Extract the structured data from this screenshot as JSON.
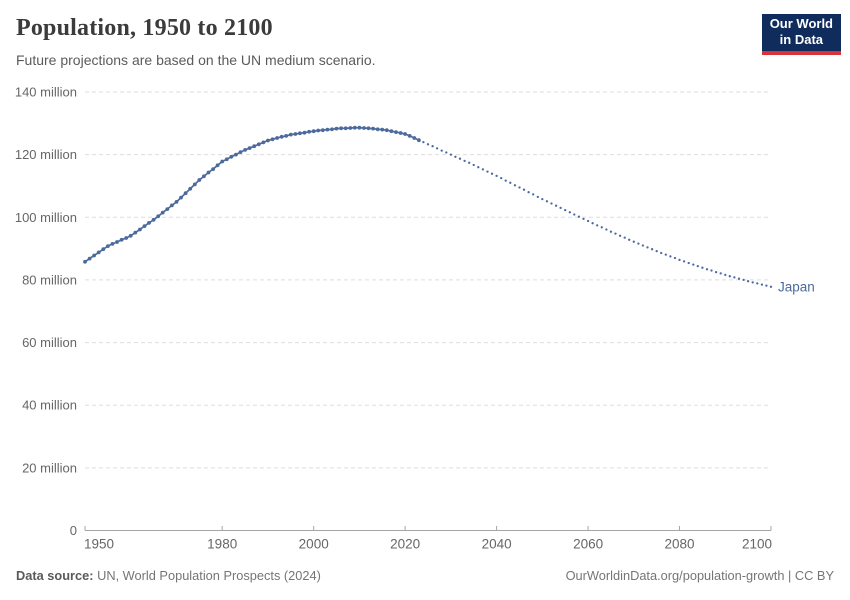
{
  "header": {
    "title": "Population, 1950 to 2100",
    "subtitle": "Future projections are based on the UN medium scenario.",
    "logo_line1": "Our World",
    "logo_line2": "in Data"
  },
  "footer": {
    "source_label": "Data source:",
    "source_text": " UN, World Population Prospects (2024)",
    "link_text": "OurWorldinData.org/population-growth | CC BY"
  },
  "colors": {
    "line": "#4C6A9C",
    "grid": "#dddddd",
    "axis": "#a5a5a5",
    "tick_text": "#666666",
    "title": "#3b3b3b",
    "subtitle": "#5b5b5b",
    "footer": "#757575",
    "logo_bg": "#0F2C5C",
    "logo_red": "#D8323A"
  },
  "chart_data": {
    "type": "line",
    "title": "Population, 1950 to 2100",
    "subtitle": "Future projections are based on the UN medium scenario.",
    "entity": "Japan",
    "end_label": "Japan",
    "unit": "million people",
    "xlim": [
      1950,
      2100
    ],
    "ylim": [
      0,
      140
    ],
    "grid": true,
    "legend_position": "end-of-line",
    "x_ticks": [
      1950,
      1980,
      2000,
      2020,
      2040,
      2060,
      2080,
      2100
    ],
    "y_ticks": [
      {
        "value": 0,
        "label": "0"
      },
      {
        "value": 20,
        "label": "20 million"
      },
      {
        "value": 40,
        "label": "40 million"
      },
      {
        "value": 60,
        "label": "60 million"
      },
      {
        "value": 80,
        "label": "80 million"
      },
      {
        "value": 100,
        "label": "100 million"
      },
      {
        "value": 120,
        "label": "120 million"
      },
      {
        "value": 140,
        "label": "140 million"
      }
    ],
    "series": [
      {
        "name": "Japan — historical estimates",
        "style": "solid-with-markers",
        "start_year": 1950,
        "values": [
          85.8,
          86.8,
          87.8,
          88.8,
          89.8,
          90.8,
          91.5,
          92.1,
          92.8,
          93.4,
          94.1,
          95.1,
          96.1,
          97.2,
          98.2,
          99.2,
          100.3,
          101.5,
          102.6,
          103.8,
          104.9,
          106.3,
          107.7,
          109.1,
          110.5,
          111.9,
          113.1,
          114.3,
          115.4,
          116.6,
          117.8,
          118.5,
          119.3,
          120.0,
          120.8,
          121.5,
          122.1,
          122.7,
          123.3,
          123.9,
          124.5,
          124.9,
          125.3,
          125.7,
          126.0,
          126.4,
          126.6,
          126.8,
          127.0,
          127.3,
          127.5,
          127.7,
          127.8,
          128.0,
          128.1,
          128.3,
          128.4,
          128.4,
          128.5,
          128.6,
          128.6,
          128.5,
          128.4,
          128.3,
          128.1,
          128.0,
          127.8,
          127.5,
          127.2,
          126.9,
          126.6,
          126.0,
          125.3,
          124.6
        ]
      },
      {
        "name": "Japan — UN medium scenario projection",
        "style": "dotted",
        "start_year": 2024,
        "values": [
          124.0,
          123.3,
          122.7,
          122.0,
          121.3,
          120.7,
          120.0,
          119.3,
          118.7,
          118.0,
          117.4,
          116.7,
          116.0,
          115.3,
          114.6,
          113.9,
          113.2,
          112.5,
          111.7,
          111.0,
          110.2,
          109.5,
          108.8,
          108.0,
          107.3,
          106.5,
          105.8,
          105.1,
          104.4,
          103.7,
          103.0,
          102.3,
          101.6,
          100.9,
          100.2,
          99.5,
          98.8,
          98.1,
          97.4,
          96.8,
          96.1,
          95.4,
          94.8,
          94.1,
          93.5,
          92.8,
          92.2,
          91.6,
          91.0,
          90.4,
          89.8,
          89.2,
          88.6,
          88.1,
          87.5,
          87.0,
          86.4,
          85.9,
          85.4,
          84.9,
          84.4,
          83.9,
          83.4,
          83.0,
          82.5,
          82.1,
          81.6,
          81.2,
          80.8,
          80.4,
          80.0,
          79.6,
          79.2,
          78.9,
          78.5,
          78.2,
          77.8
        ]
      }
    ]
  }
}
